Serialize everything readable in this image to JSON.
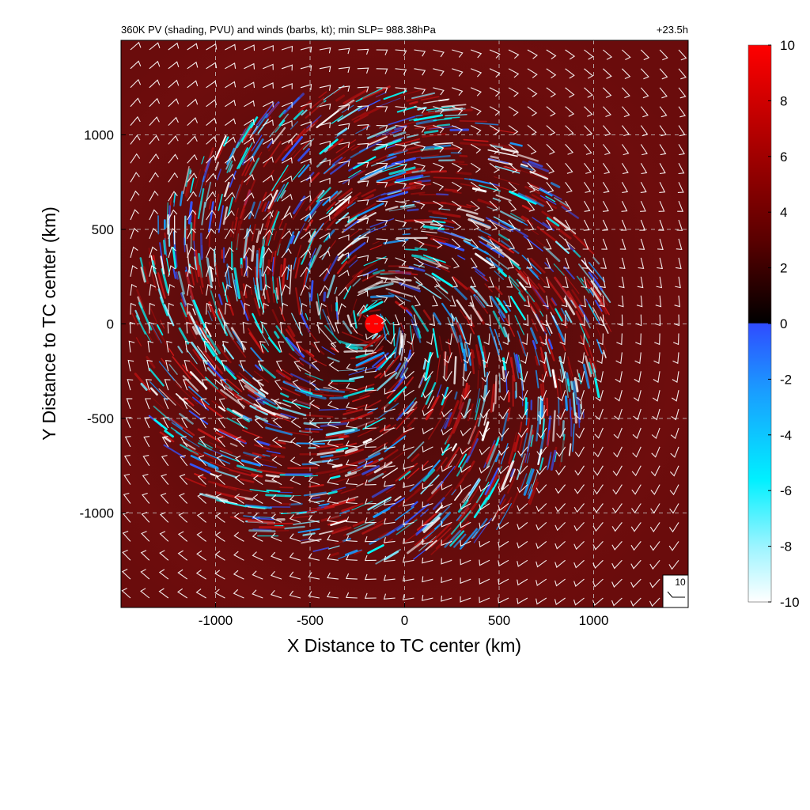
{
  "chart_data": {
    "type": "heatmap",
    "title": "360K PV (shading, PVU) and winds (barbs, kt); min SLP= 988.38hPa",
    "time_label": "+23.5h",
    "xlabel": "X Distance to TC center (km)",
    "ylabel": "Y Distance to TC center (km)",
    "xlim": [
      -1500,
      1500
    ],
    "ylim": [
      -1500,
      1500
    ],
    "x_ticks": [
      -1000,
      -500,
      0,
      500,
      1000
    ],
    "y_ticks": [
      -1000,
      -500,
      0,
      500,
      1000
    ],
    "x_tick_labels": [
      "-1000",
      "-500",
      "0",
      "500",
      "1000"
    ],
    "y_tick_labels": [
      "-1000",
      "-500",
      "0",
      "500",
      "1000"
    ],
    "grid": true,
    "variable": "360K potential vorticity",
    "units": "PVU",
    "colorbar": {
      "min": -10,
      "max": 10,
      "ticks": [
        10,
        8,
        6,
        4,
        2,
        0,
        -2,
        -4,
        -6,
        -8,
        -10
      ],
      "tick_labels": [
        "10",
        "8",
        "6",
        "4",
        "2",
        "0",
        "-2",
        "-4",
        "-6",
        "-8",
        "-10"
      ],
      "colors": {
        "pos_high": "#ff0000",
        "pos_mid": "#8b0000",
        "pos_low": "#000000",
        "neg_low": "#3355ff",
        "neg_mid": "#00ffff",
        "neg_high": "#ffffff"
      }
    },
    "storm_center": {
      "x": -180,
      "y": 0
    },
    "wind_barbs": {
      "grid_spacing_km": 100,
      "reference_speed_kt": 10,
      "reference_label": "10"
    }
  }
}
